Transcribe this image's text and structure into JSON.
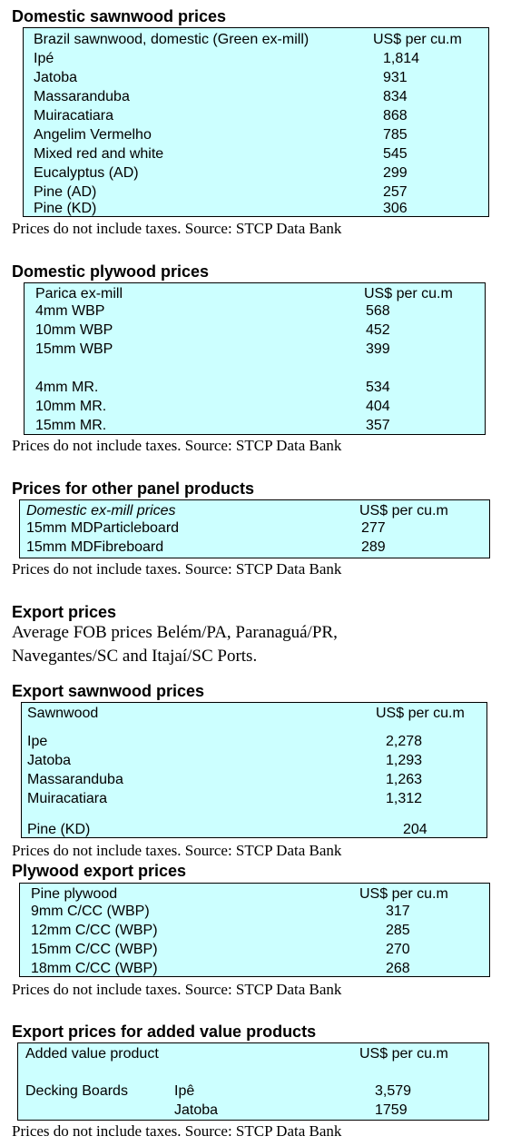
{
  "sections": {
    "domestic_sawnwood": {
      "title": "Domestic sawnwood prices",
      "header": {
        "label": "Brazil sawnwood, domestic (Green ex-mill)",
        "unit": "US$ per cu.m"
      },
      "rows": [
        {
          "name": "Ipé",
          "value": "1,814"
        },
        {
          "name": "Jatoba",
          "value": "931"
        },
        {
          "name": "Massaranduba",
          "value": "834"
        },
        {
          "name": "Muiracatiara",
          "value": "868"
        },
        {
          "name": "Angelim Vermelho",
          "value": "785"
        },
        {
          "name": "Mixed red and white",
          "value": "545"
        },
        {
          "name": "Eucalyptus (AD)",
          "value": "299"
        },
        {
          "name": "Pine (AD)",
          "value": "257"
        },
        {
          "name": "Pine (KD)",
          "value": "306"
        }
      ],
      "note": "Prices do not include taxes. Source: STCP Data Bank"
    },
    "domestic_plywood": {
      "title": "Domestic plywood prices",
      "header": {
        "label": "Parica ex-mill",
        "unit": "US$ per cu.m"
      },
      "rows": [
        {
          "name": "4mm WBP",
          "value": "568"
        },
        {
          "name": "10mm WBP",
          "value": "452"
        },
        {
          "name": "15mm WBP",
          "value": "399"
        },
        {
          "name": "4mm MR.",
          "value": "534"
        },
        {
          "name": "10mm MR.",
          "value": "404"
        },
        {
          "name": "15mm MR.",
          "value": "357"
        }
      ],
      "note": "Prices do not include taxes. Source: STCP Data Bank"
    },
    "other_panels": {
      "title": "Prices for other panel products",
      "header": {
        "label": "Domestic ex-mill prices",
        "unit": "US$ per cu.m"
      },
      "rows": [
        {
          "name": "15mm MDParticleboard",
          "value": "277"
        },
        {
          "name": "15mm MDFibreboard",
          "value": "289"
        }
      ],
      "note": "Prices do not include taxes. Source: STCP Data Bank"
    },
    "export_prices": {
      "title": "Export prices",
      "lines": [
        "Average FOB prices Belém/PA, Paranaguá/PR,",
        "Navegantes/SC and Itajaí/SC Ports."
      ]
    },
    "export_sawnwood": {
      "title": "Export sawnwood prices",
      "header": {
        "label": "Sawnwood",
        "unit": "US$ per cu.m"
      },
      "rows": [
        {
          "name": "Ipe",
          "value": "2,278"
        },
        {
          "name": "Jatoba",
          "value": "1,293"
        },
        {
          "name": "Massaranduba",
          "value": "1,263"
        },
        {
          "name": "Muiracatiara",
          "value": "1,312"
        },
        {
          "name": "Pine (KD)",
          "value": "204"
        }
      ],
      "note": "Prices do not include taxes. Source: STCP Data Bank"
    },
    "plywood_export": {
      "title": "Plywood export prices",
      "header": {
        "label": "Pine plywood",
        "unit": "US$ per cu.m"
      },
      "rows": [
        {
          "name": "9mm C/CC (WBP)",
          "value": "317"
        },
        {
          "name": "12mm C/CC (WBP)",
          "value": "285"
        },
        {
          "name": "15mm C/CC (WBP)",
          "value": "270"
        },
        {
          "name": "18mm C/CC (WBP)",
          "value": "268"
        }
      ],
      "note": "Prices do not include taxes. Source: STCP Data Bank"
    },
    "added_value": {
      "title": "Export prices for added value products",
      "header": {
        "label": "Added value product",
        "unit": "US$ per cu.m"
      },
      "group": "Decking Boards",
      "rows": [
        {
          "name": "Ipê",
          "value": "3,579"
        },
        {
          "name": "Jatoba",
          "value": "1759"
        }
      ],
      "note": "Prices do not include taxes. Source: STCP Data Bank"
    }
  }
}
